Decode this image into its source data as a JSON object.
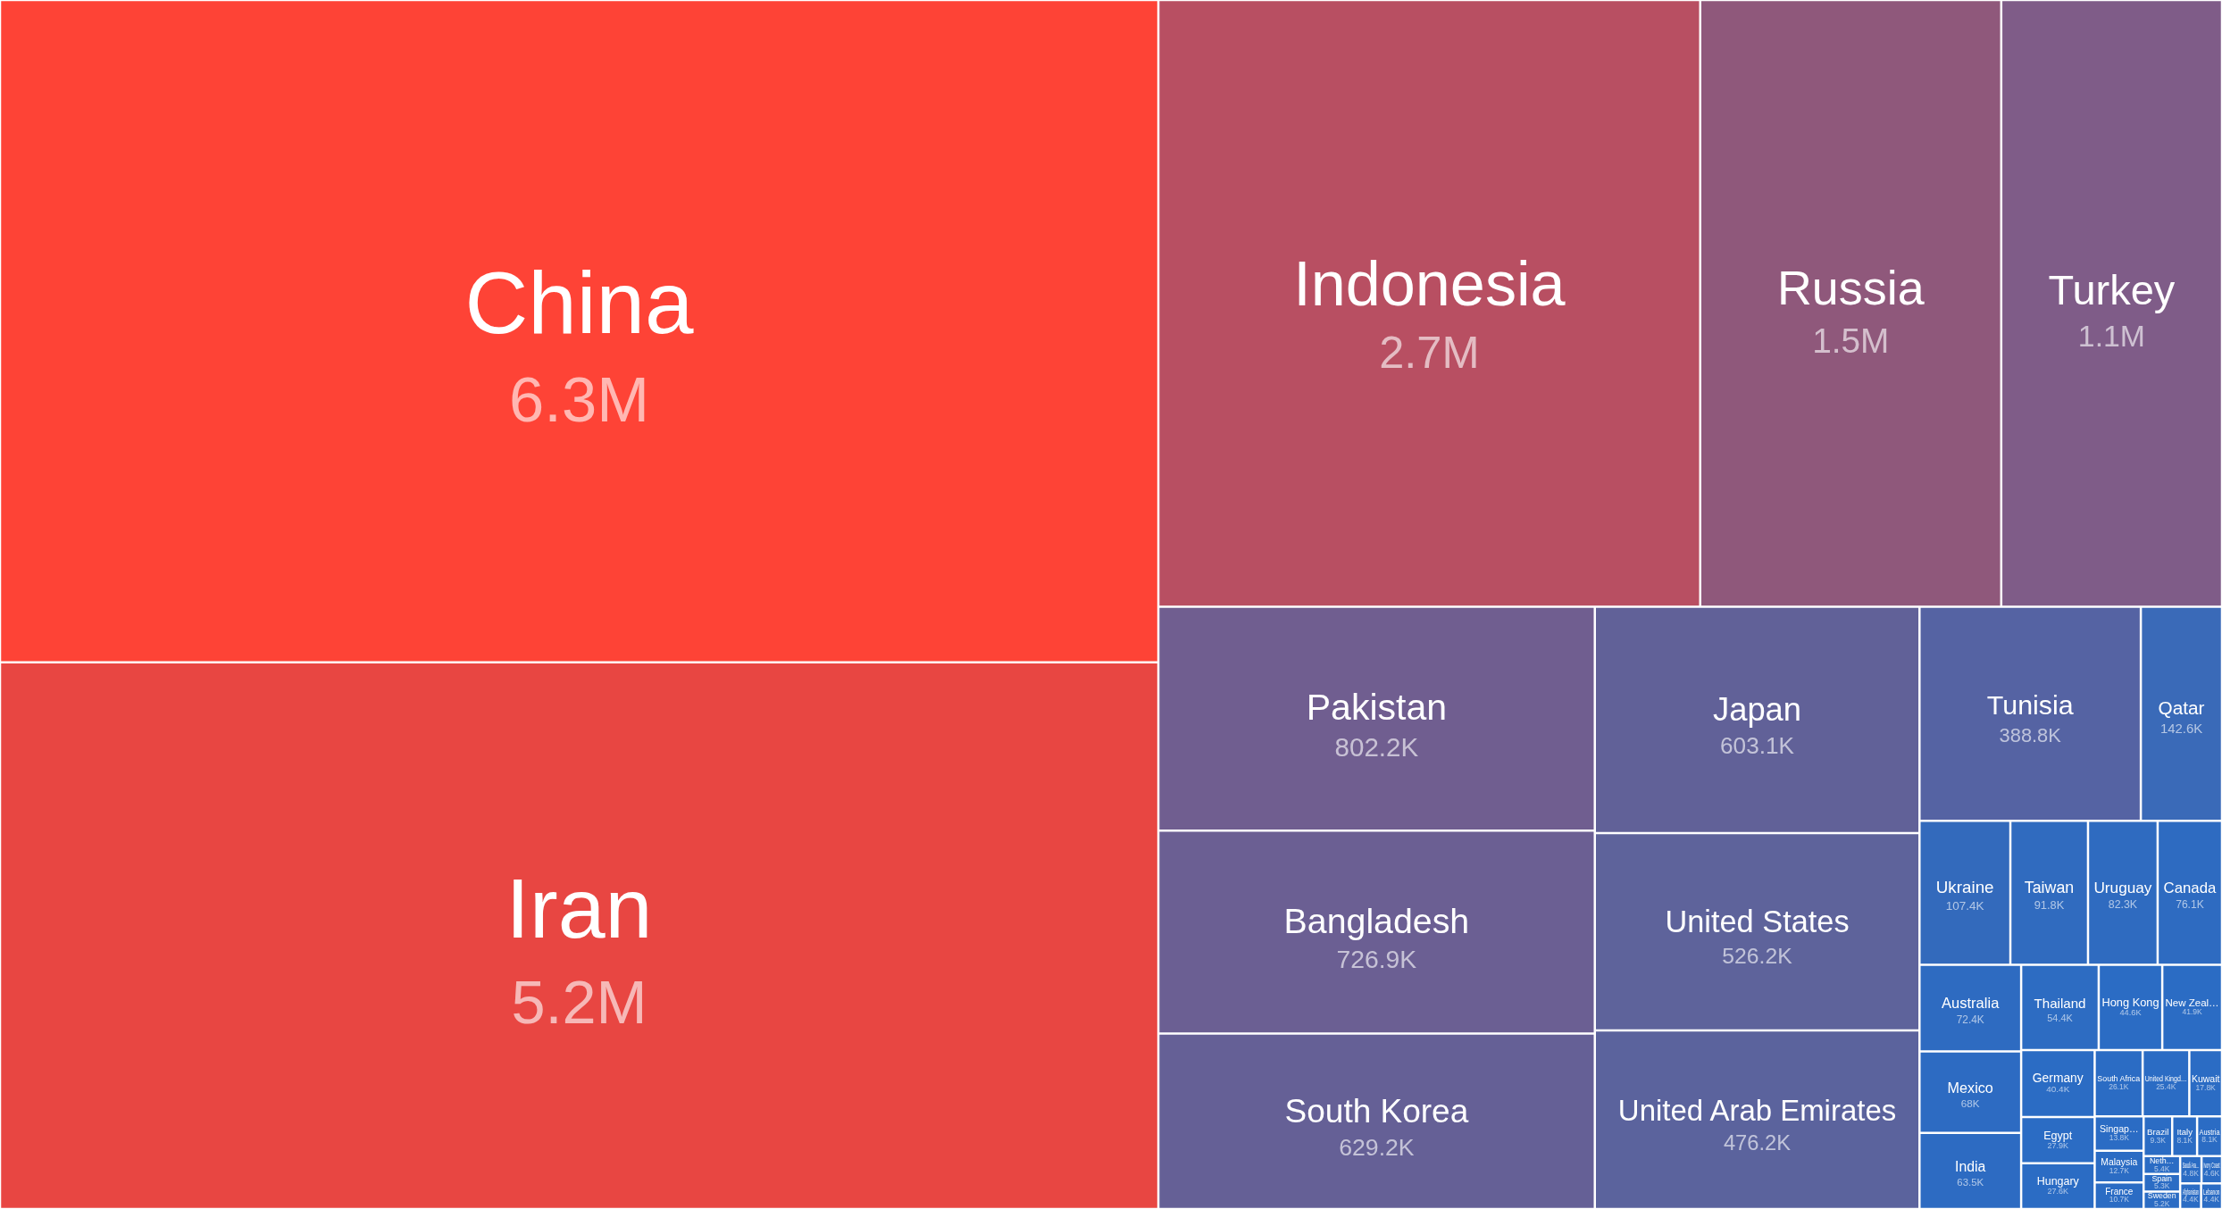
{
  "chart_data": {
    "type": "other",
    "categories": [
      "China",
      "Iran",
      "Indonesia",
      "Russia",
      "Turkey",
      "Pakistan",
      "Bangladesh",
      "South Korea",
      "Japan",
      "United States",
      "United Arab Emirates",
      "Tunisia",
      "Qatar",
      "Ukraine",
      "Taiwan",
      "Uruguay",
      "Canada",
      "Australia",
      "Mexico",
      "India",
      "Thailand",
      "Hong Kong",
      "New Zeal…",
      "Germany",
      "Egypt",
      "Hungary",
      "South Africa",
      "United Kingd…",
      "Kuwait",
      "Singap…",
      "Malaysia",
      "France",
      "Brazil",
      "Italy",
      "Austria",
      "Neth…",
      "Spain",
      "Sweden",
      "Saudi Ara…",
      "Ivory Coast",
      "Afghanistan",
      "Lebanon"
    ],
    "values": [
      6300000,
      5200000,
      2700000,
      1500000,
      1100000,
      802200,
      726900,
      629200,
      603100,
      526200,
      476200,
      388800,
      142600,
      107400,
      91800,
      82300,
      76100,
      72400,
      68000,
      63500,
      54400,
      44600,
      41900,
      40400,
      27900,
      27600,
      26100,
      25400,
      17800,
      13800,
      12700,
      10700,
      9300,
      8100,
      8100,
      5400,
      5300,
      5200,
      4800,
      4600,
      4400,
      4400
    ],
    "value_labels": [
      "6.3M",
      "5.2M",
      "2.7M",
      "1.5M",
      "1.1M",
      "802.2K",
      "726.9K",
      "629.2K",
      "603.1K",
      "526.2K",
      "476.2K",
      "388.8K",
      "142.6K",
      "107.4K",
      "91.8K",
      "82.3K",
      "76.1K",
      "72.4K",
      "68K",
      "63.5K",
      "54.4K",
      "44.6K",
      "41.9K",
      "40.4K",
      "27.9K",
      "27.6K",
      "26.1K",
      "25.4K",
      "17.8K",
      "13.8K",
      "12.7K",
      "10.7K",
      "9.3K",
      "8.1K",
      "8.1K",
      "5.4K",
      "5.3K",
      "5.2K",
      "4.8K",
      "4.6K",
      "4.4K",
      "4.4K"
    ],
    "colors": [
      "#fe4336",
      "#e84642",
      "#b84f62",
      "#8f587b",
      "#7f5c88",
      "#705e90",
      "#6b5f93",
      "#656096",
      "#616198",
      "#5e639b",
      "#5b639d",
      "#5563a3",
      "#3a6ab8",
      "#336abc",
      "#306bbf",
      "#2f6bc0",
      "#2e6bc1",
      "#2e6bc1",
      "#2d6bc2",
      "#2d6bc2",
      "#2d6cc2",
      "#2b6cc4",
      "#2b6cc4",
      "#2b6cc4",
      "#2b6cc4",
      "#2b6cc4",
      "#2b6cc4",
      "#2b6cc4",
      "#2b6cc4",
      "#2b6cc4",
      "#2b6cc4",
      "#2b6cc4",
      "#2b6cc4",
      "#2b6cc4",
      "#2b6cc4",
      "#2b6cc4",
      "#2b6cc4",
      "#2b6cc4",
      "#2b6cc4",
      "#2b6cc4",
      "#2b6cc4",
      "#2b6cc4"
    ]
  }
}
